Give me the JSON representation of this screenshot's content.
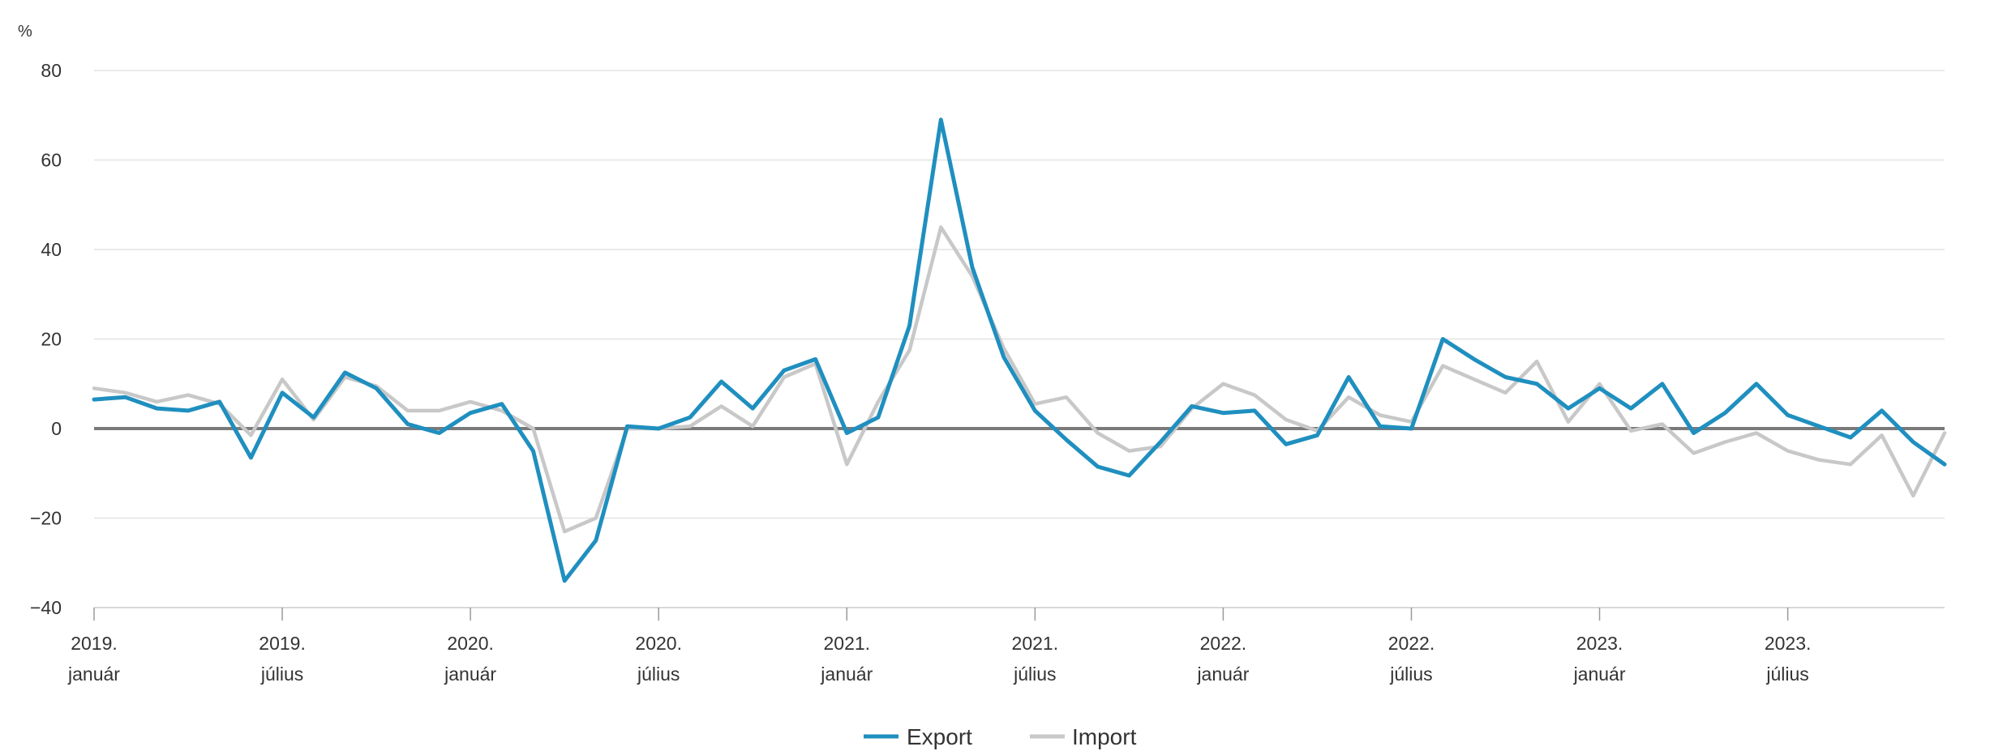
{
  "chart_data": {
    "type": "line",
    "title": "",
    "ylabel": "%",
    "ylim": [
      -40,
      80
    ],
    "yticks": [
      "80",
      "60",
      "40",
      "20",
      "0",
      "−20",
      "−40"
    ],
    "ytick_values": [
      80,
      60,
      40,
      20,
      0,
      -20,
      -40
    ],
    "x_tick_labels": [
      {
        "index": 0,
        "line1": "2019.",
        "line2": "január"
      },
      {
        "index": 6,
        "line1": "2019.",
        "line2": "július"
      },
      {
        "index": 12,
        "line1": "2020.",
        "line2": "január"
      },
      {
        "index": 18,
        "line1": "2020.",
        "line2": "július"
      },
      {
        "index": 24,
        "line1": "2021.",
        "line2": "január"
      },
      {
        "index": 30,
        "line1": "2021.",
        "line2": "július"
      },
      {
        "index": 36,
        "line1": "2022.",
        "line2": "január"
      },
      {
        "index": 42,
        "line1": "2022.",
        "line2": "július"
      },
      {
        "index": 48,
        "line1": "2023.",
        "line2": "január"
      },
      {
        "index": 54,
        "line1": "2023.",
        "line2": "július"
      }
    ],
    "x_start": "2019-01",
    "x_end": "2023-12",
    "grid": true,
    "legend_position": "bottom-center",
    "series": [
      {
        "name": "Export",
        "color": "#1f8fbf",
        "values": [
          6.5,
          7,
          4.5,
          4,
          6,
          -6.5,
          8,
          2.5,
          12.5,
          9,
          1,
          -1,
          3.5,
          5.5,
          -5,
          -34,
          -25,
          0.5,
          0,
          2.5,
          10.5,
          4.5,
          13,
          15.5,
          -1,
          2.5,
          23,
          69,
          36,
          16,
          4,
          -2.5,
          -8.5,
          -10.5,
          -3,
          5,
          3.5,
          4,
          -3.5,
          -1.5,
          11.5,
          0.5,
          0,
          20,
          15.5,
          11.5,
          10,
          4.5,
          9,
          4.5,
          10,
          -1,
          3.5,
          10,
          3,
          0.5,
          -2,
          4,
          -3,
          -8
        ]
      },
      {
        "name": "Import",
        "color": "#c8c8c8",
        "values": [
          9,
          8,
          6,
          7.5,
          5.5,
          -1.5,
          11,
          2,
          11.5,
          9.5,
          4,
          4,
          6,
          4,
          0,
          -23,
          -20,
          0,
          0,
          0.5,
          5,
          0.5,
          11.5,
          14.5,
          -8,
          6,
          17.5,
          45,
          34,
          18,
          5.5,
          7,
          -1,
          -5,
          -4,
          4.5,
          10,
          7.5,
          2,
          -0.5,
          7,
          3,
          1.5,
          14,
          11,
          8,
          15,
          1.5,
          10,
          -0.5,
          1,
          -5.5,
          -3,
          -1,
          -5,
          -7,
          -8,
          -1.5,
          -15,
          -1
        ]
      }
    ]
  },
  "legend": {
    "export_label": "Export",
    "import_label": "Import"
  }
}
